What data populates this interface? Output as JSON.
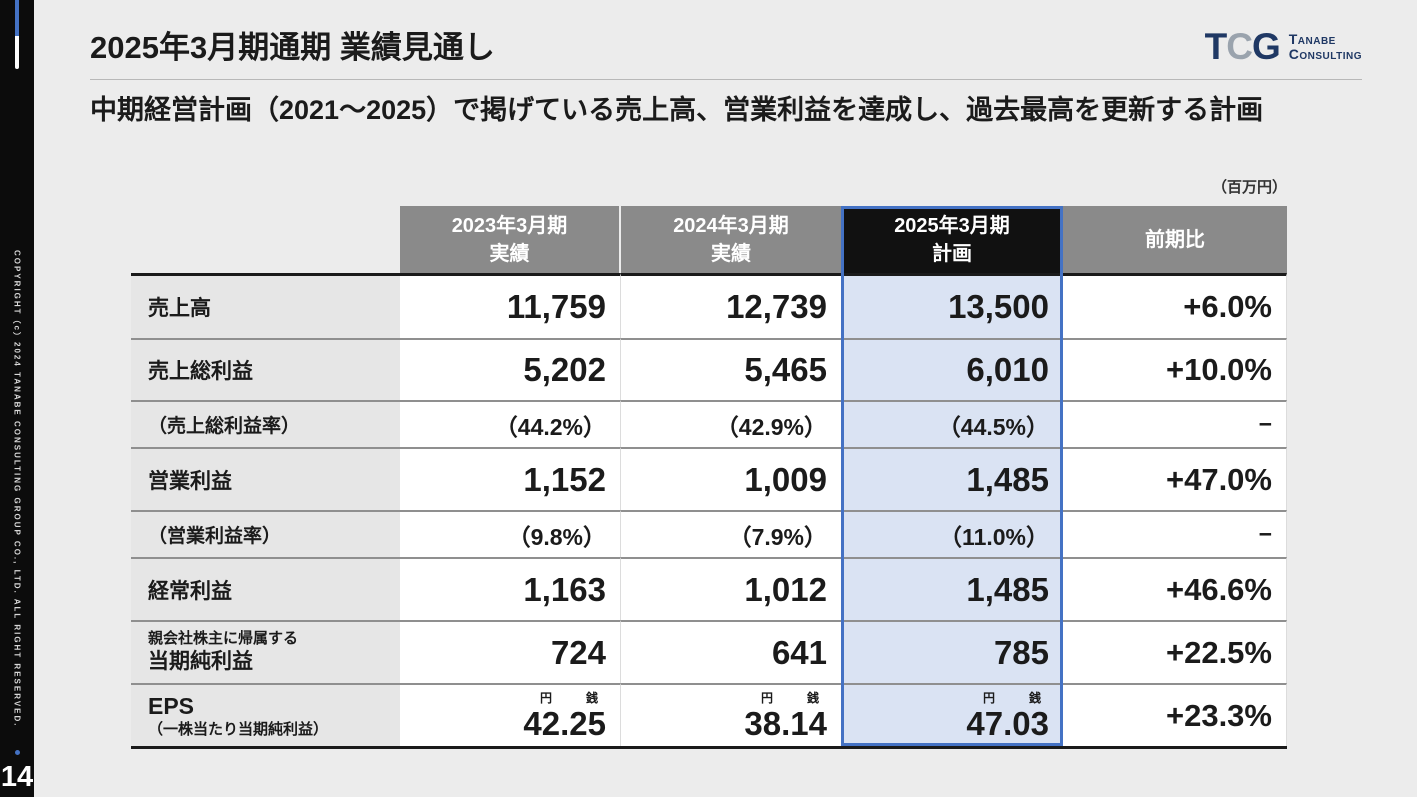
{
  "slide": {
    "title": "2025年3月期通期 業績見通し",
    "subtitle": "中期経営計画（2021～2025）で掲げている売上高、営業利益を達成し、過去最高を更新する計画",
    "unit_note": "（百万円）",
    "page_number": "14",
    "copyright": "COPYRIGHT（c）2024 TANABE CONSULTING GROUP CO., LTD. ALL RIGHT RESERVED."
  },
  "logo": {
    "t": "T",
    "c": "C",
    "g": "G",
    "name_line1": "Tanabe",
    "name_line2": "Consulting"
  },
  "table": {
    "columns": [
      {
        "line1": "2023年3月期",
        "line2": "実績"
      },
      {
        "line1": "2024年3月期",
        "line2": "実績"
      },
      {
        "line1": "2025年3月期",
        "line2": "計画"
      },
      {
        "line1": "前期比"
      }
    ],
    "rows": [
      {
        "label": "売上高",
        "y2023": "11,759",
        "y2024": "12,739",
        "plan2025": "13,500",
        "yoy": "+6.0%"
      },
      {
        "label": "売上総利益",
        "y2023": "5,202",
        "y2024": "5,465",
        "plan2025": "6,010",
        "yoy": "+10.0%"
      },
      {
        "label": "（売上総利益率）",
        "y2023": "（44.2%）",
        "y2024": "（42.9%）",
        "plan2025": "（44.5%）",
        "yoy": "−"
      },
      {
        "label": "営業利益",
        "y2023": "1,152",
        "y2024": "1,009",
        "plan2025": "1,485",
        "yoy": "+47.0%"
      },
      {
        "label": "（営業利益率）",
        "y2023": "（9.8%）",
        "y2024": "（7.9%）",
        "plan2025": "（11.0%）",
        "yoy": "−"
      },
      {
        "label": "経常利益",
        "y2023": "1,163",
        "y2024": "1,012",
        "plan2025": "1,485",
        "yoy": "+46.6%"
      },
      {
        "label_line1": "親会社株主に帰属する",
        "label_line2": "当期純利益",
        "y2023": "724",
        "y2024": "641",
        "plan2025": "785",
        "yoy": "+22.5%"
      },
      {
        "label_line1": "EPS",
        "label_line2": "（一株当たり当期純利益）",
        "unit_yen": "円",
        "unit_sen": "銭",
        "y2023": "42.25",
        "y2024": "38.14",
        "plan2025": "47.03",
        "yoy": "+23.3%"
      }
    ],
    "colors": {
      "header_bg": "#8a8a8a",
      "plan_header_bg": "#111111",
      "plan_cell_bg": "#dae3f3",
      "highlight_border": "#4472c4",
      "label_bg": "#e6e6e6",
      "sidebar_bg": "#0c0c0c",
      "logo_navy": "#1f3864"
    }
  }
}
